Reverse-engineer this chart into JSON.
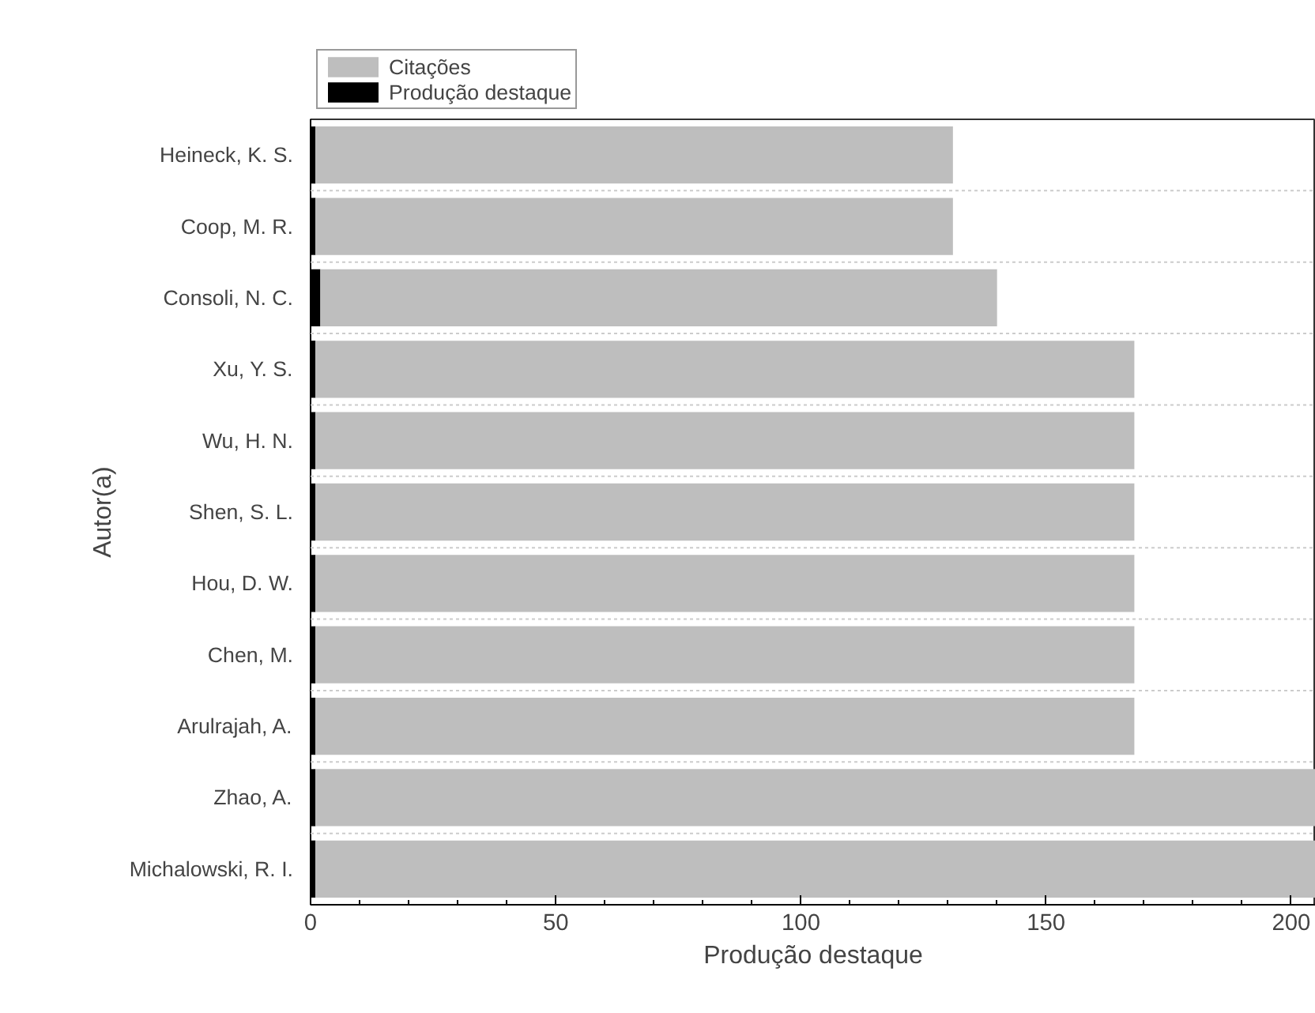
{
  "chart_data": {
    "type": "bar",
    "orientation": "horizontal",
    "stacked": true,
    "xlabel": "Produção destaque",
    "ylabel": "Autor(a)",
    "categories": [
      "Heineck, K. S.",
      "Coop, M. R.",
      "Consoli, N. C.",
      "Xu, Y. S.",
      "Wu, H. N.",
      "Shen, S. L.",
      "Hou, D. W.",
      "Chen, M.",
      "Arulrajah, A.",
      "Zhao, A.",
      "Michalowski, R. I."
    ],
    "series": [
      {
        "name": "Produção destaque",
        "color": "#000000",
        "values": [
          1,
          1,
          2,
          1,
          1,
          1,
          1,
          1,
          1,
          1,
          1
        ]
      },
      {
        "name": "Citações",
        "color": "#bebebe",
        "values": [
          130,
          130,
          138,
          167,
          167,
          167,
          167,
          167,
          167,
          204,
          204
        ]
      }
    ],
    "xlim": [
      0,
      205
    ],
    "xticks": [
      0,
      50,
      100,
      150,
      200
    ],
    "grid": "y",
    "legend": "top left"
  }
}
